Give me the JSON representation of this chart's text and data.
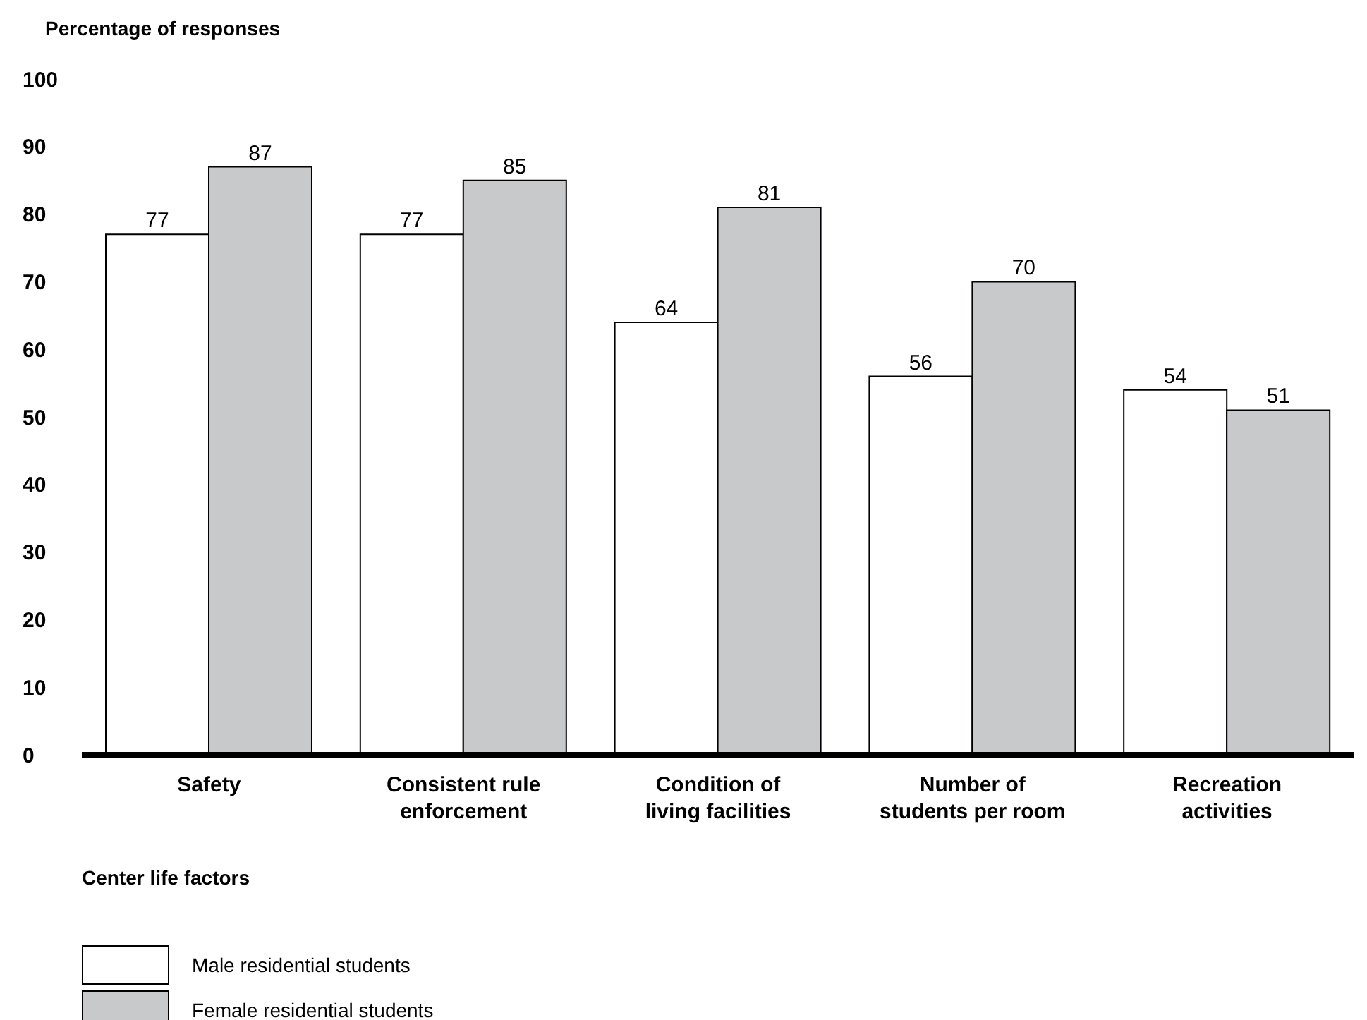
{
  "chart_data": {
    "type": "bar",
    "ylabel": "Percentage of responses",
    "xlabel": "Center life factors",
    "categories": [
      "Safety",
      "Consistent rule enforcement",
      "Condition of living facilities",
      "Number of students per room",
      "Recreation activities"
    ],
    "series": [
      {
        "name": "Male residential students",
        "color": "#ffffff",
        "values": [
          77,
          77,
          64,
          56,
          54
        ]
      },
      {
        "name": "Female residential students",
        "color": "#c8c9cb",
        "values": [
          87,
          85,
          81,
          70,
          51
        ]
      }
    ],
    "ylim": [
      0,
      100
    ],
    "yticks": [
      0,
      10,
      20,
      30,
      40,
      50,
      60,
      70,
      80,
      90,
      100
    ],
    "data_labels": true,
    "legend": "bottom left"
  }
}
